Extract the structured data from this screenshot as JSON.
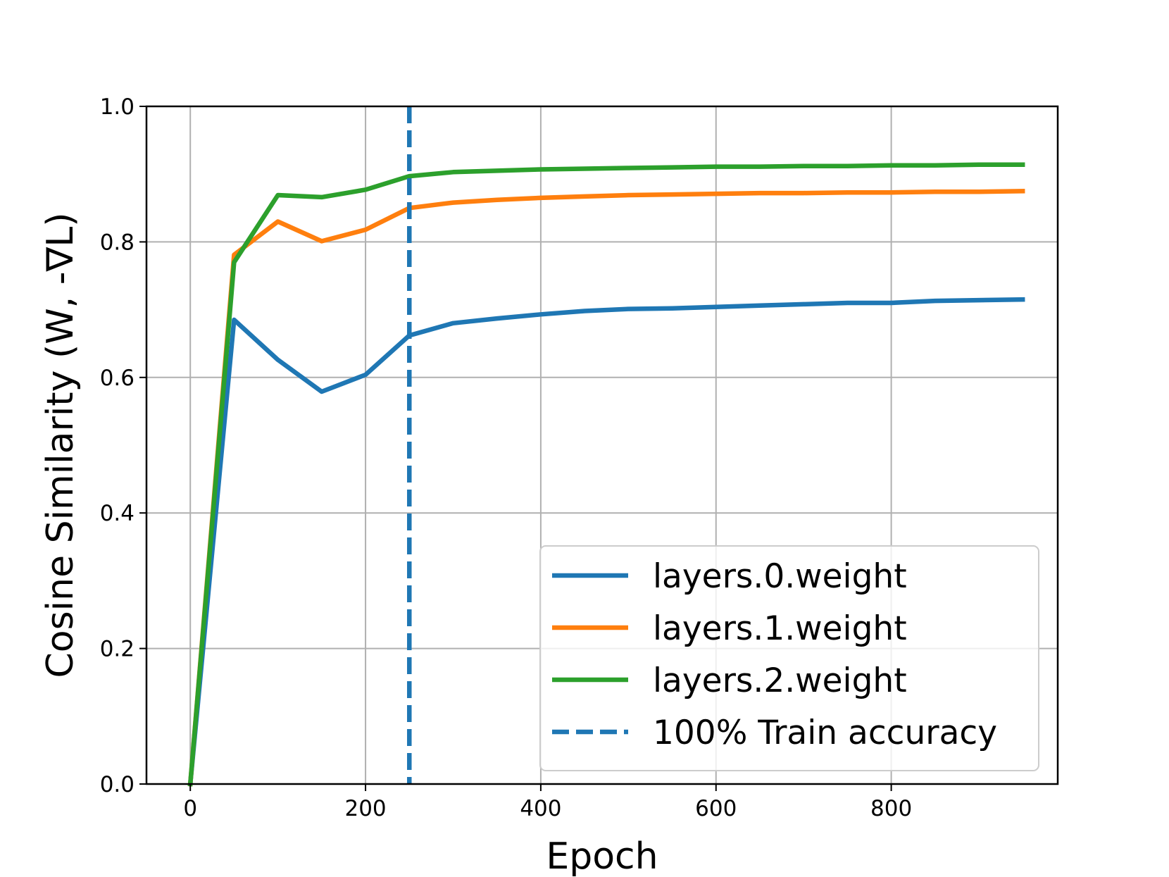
{
  "chart_data": {
    "type": "line",
    "title": "",
    "xlabel": "Epoch",
    "ylabel": "Cosine Similarity (W, -∇L)",
    "xlim": [
      -50,
      990
    ],
    "ylim": [
      0.0,
      1.0
    ],
    "xticks": [
      0,
      200,
      400,
      600,
      800
    ],
    "xtick_labels": [
      "0",
      "200",
      "400",
      "600",
      "800"
    ],
    "yticks": [
      0.0,
      0.2,
      0.4,
      0.6,
      0.8,
      1.0
    ],
    "ytick_labels": [
      "0.0",
      "0.2",
      "0.4",
      "0.6",
      "0.8",
      "1.0"
    ],
    "grid": true,
    "legend_position": "lower-right",
    "x": [
      0,
      50,
      100,
      150,
      200,
      250,
      300,
      350,
      400,
      450,
      500,
      550,
      600,
      650,
      700,
      750,
      800,
      850,
      900,
      950
    ],
    "series": [
      {
        "name": "layers.0.weight",
        "color": "#1f77b4",
        "values": [
          0.0,
          0.685,
          0.626,
          0.579,
          0.604,
          0.662,
          0.68,
          0.687,
          0.693,
          0.698,
          0.701,
          0.702,
          0.704,
          0.706,
          0.708,
          0.71,
          0.71,
          0.713,
          0.714,
          0.715
        ]
      },
      {
        "name": "layers.1.weight",
        "color": "#ff7f0e",
        "values": [
          0.0,
          0.781,
          0.83,
          0.801,
          0.818,
          0.85,
          0.858,
          0.862,
          0.865,
          0.867,
          0.869,
          0.87,
          0.871,
          0.872,
          0.872,
          0.873,
          0.873,
          0.874,
          0.874,
          0.875
        ]
      },
      {
        "name": "layers.2.weight",
        "color": "#2ca02c",
        "values": [
          0.0,
          0.77,
          0.869,
          0.866,
          0.877,
          0.897,
          0.903,
          0.905,
          0.907,
          0.908,
          0.909,
          0.91,
          0.911,
          0.911,
          0.912,
          0.912,
          0.913,
          0.913,
          0.914,
          0.914
        ]
      }
    ],
    "vline": {
      "name": "100% Train accuracy",
      "x": 250,
      "color": "#1f77b4",
      "style": "dashed"
    }
  }
}
